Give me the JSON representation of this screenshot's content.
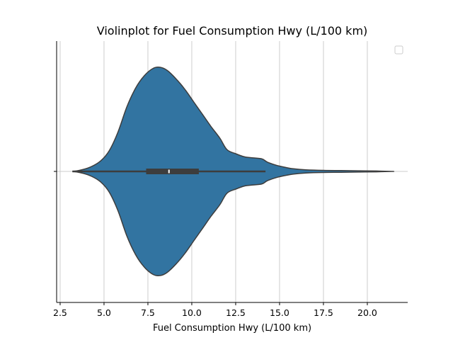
{
  "chart_data": {
    "type": "violin",
    "title": "Violinplot for Fuel Consumption Hwy (L/100 km)",
    "xlabel": "Fuel Consumption Hwy (L/100 km)",
    "ylabel": "",
    "xlim": [
      2.5,
      22.0
    ],
    "xticks": [
      2.5,
      5.0,
      7.5,
      10.0,
      12.5,
      15.0,
      17.5,
      20.0
    ],
    "xtick_labels": [
      "2.5",
      "5.0",
      "7.5",
      "10.0",
      "12.5",
      "15.0",
      "17.5",
      "20.0"
    ],
    "grid": "x",
    "legend": "top-right (empty)",
    "color": "#3274a1",
    "edge_color": "#3d3d3d",
    "summary": {
      "min": 3.2,
      "q1": 7.4,
      "median": 8.7,
      "q3": 10.4,
      "whisker_low": 3.2,
      "whisker_high": 14.2,
      "max": 21.4
    },
    "density_profile": {
      "x": [
        3.2,
        3.6,
        4.2,
        4.8,
        5.3,
        5.8,
        6.3,
        6.8,
        7.3,
        7.8,
        8.2,
        8.6,
        9.1,
        9.6,
        10.1,
        10.6,
        11.1,
        11.6,
        12.0,
        12.5,
        13.0,
        13.5,
        14.0,
        14.3,
        14.8,
        15.3,
        15.8,
        16.5,
        17.5,
        18.5,
        19.5,
        20.5,
        21.4
      ],
      "density": [
        0.0,
        0.01,
        0.04,
        0.1,
        0.2,
        0.38,
        0.62,
        0.8,
        0.92,
        0.99,
        1.0,
        0.97,
        0.89,
        0.79,
        0.67,
        0.55,
        0.43,
        0.32,
        0.21,
        0.17,
        0.14,
        0.13,
        0.12,
        0.09,
        0.06,
        0.04,
        0.025,
        0.015,
        0.01,
        0.008,
        0.006,
        0.004,
        0.0
      ]
    }
  }
}
